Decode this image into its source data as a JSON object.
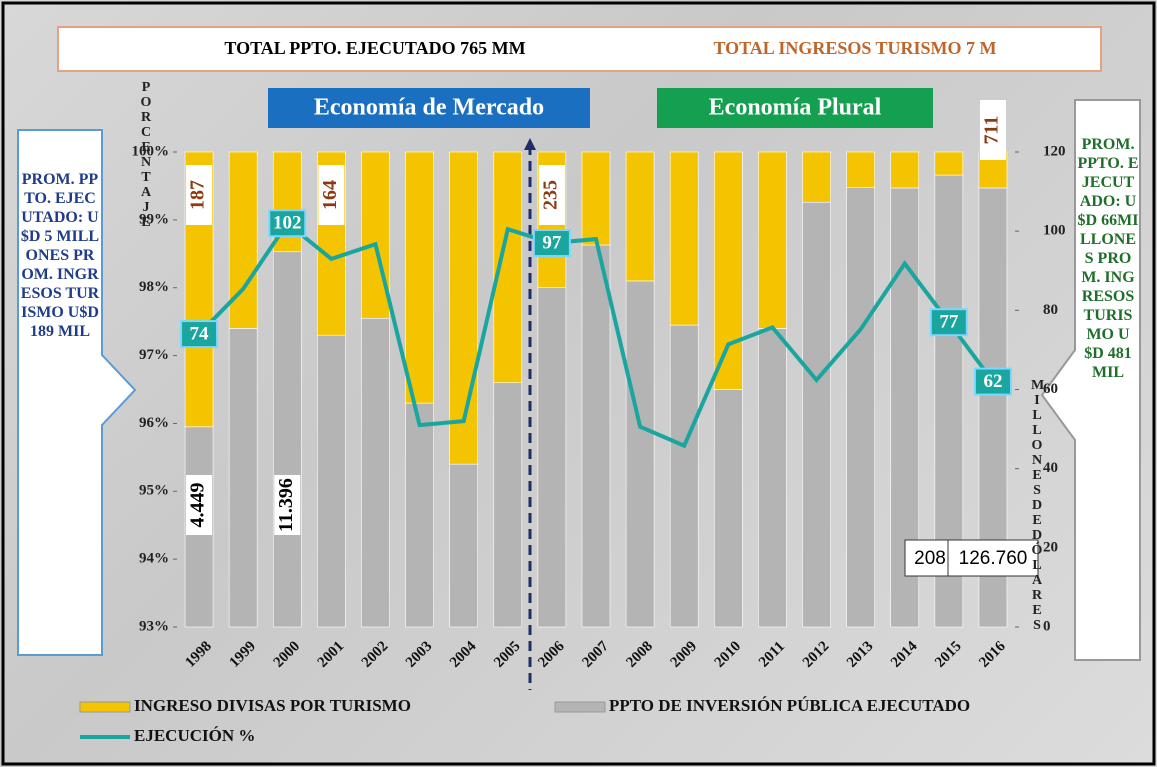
{
  "chart_data": {
    "type": "stacked_bar_line",
    "header_left": "TOTAL PPTO. EJECUTADO 765 MM",
    "header_right": "TOTAL INGRESOS TURISMO 7 M",
    "period_left": "Economía de Mercado",
    "period_right": "Economía Plural",
    "note_left": "PROM. PPTO. EJECUTADO: U$D 5 MILLONES PROM. INGRESOS TURISMO U$D 189 MIL",
    "note_right": "PROM. PPTO. EJECUTADO: U$D 66MILLONES PROM. INGRESOS TURISMO U$D 481 MIL",
    "ylabel": "PORCENTAJE",
    "y2label": "MILLONES DE DÓLARES",
    "categories": [
      "1998",
      "1999",
      "2000",
      "2001",
      "2002",
      "2003",
      "2004",
      "2005",
      "2006",
      "2007",
      "2008",
      "2009",
      "2010",
      "2011",
      "2012",
      "2013",
      "2014",
      "2015",
      "2016"
    ],
    "ylim": [
      93,
      100
    ],
    "yticks": [
      {
        "value": 93,
        "label": "93%"
      },
      {
        "value": 94,
        "label": "94%"
      },
      {
        "value": 95,
        "label": "95%"
      },
      {
        "value": 96,
        "label": "96%"
      },
      {
        "value": 97,
        "label": "97%"
      },
      {
        "value": 98,
        "label": "98%"
      },
      {
        "value": 99,
        "label": "99%"
      },
      {
        "value": 100,
        "label": "100%"
      }
    ],
    "y2lim": [
      0,
      120
    ],
    "y2ticks": [
      0,
      20,
      40,
      60,
      80,
      100,
      120
    ],
    "series": [
      {
        "name": "PPTO DE INVERSIÓN PÚBLICA EJECUTADO",
        "color": "#b4b4b4",
        "values": [
          95.95,
          97.4,
          98.53,
          97.3,
          97.55,
          96.3,
          95.4,
          96.6,
          98.0,
          98.63,
          98.1,
          97.45,
          96.5,
          97.4,
          99.26,
          99.48,
          99.47,
          99.66,
          99.47
        ]
      },
      {
        "name": "INGRESO DIVISAS POR TURISMO",
        "color": "#f5c400",
        "values": [
          4.05,
          2.6,
          1.47,
          2.7,
          2.45,
          3.7,
          4.6,
          3.4,
          2.0,
          1.37,
          1.9,
          2.55,
          3.5,
          2.6,
          0.74,
          0.52,
          0.53,
          0.34,
          0.53
        ]
      },
      {
        "name": "EJECUCIÓN %",
        "color": "#1ba59f",
        "axis": "y2",
        "values": [
          74,
          85.4,
          102,
          93,
          96.7,
          51,
          52,
          100.5,
          97,
          98,
          50.6,
          45.8,
          71.4,
          75.7,
          62.4,
          75.2,
          91.8,
          77,
          62
        ],
        "value_labels": [
          "74",
          null,
          "102",
          null,
          null,
          null,
          null,
          null,
          "97",
          null,
          null,
          null,
          null,
          null,
          null,
          null,
          null,
          "77",
          "62"
        ]
      }
    ],
    "annotations": [
      {
        "x": "1998",
        "text": "187"
      },
      {
        "x": "2001",
        "text": "164"
      },
      {
        "x": "2006",
        "text": "235"
      },
      {
        "x": "2016",
        "text": "711"
      },
      {
        "x": "1998",
        "text": "4.449"
      },
      {
        "x": "2000",
        "text": "11.396"
      },
      {
        "x": "2015",
        "text": "208"
      },
      {
        "x": "2016",
        "text": "126.760"
      }
    ]
  }
}
